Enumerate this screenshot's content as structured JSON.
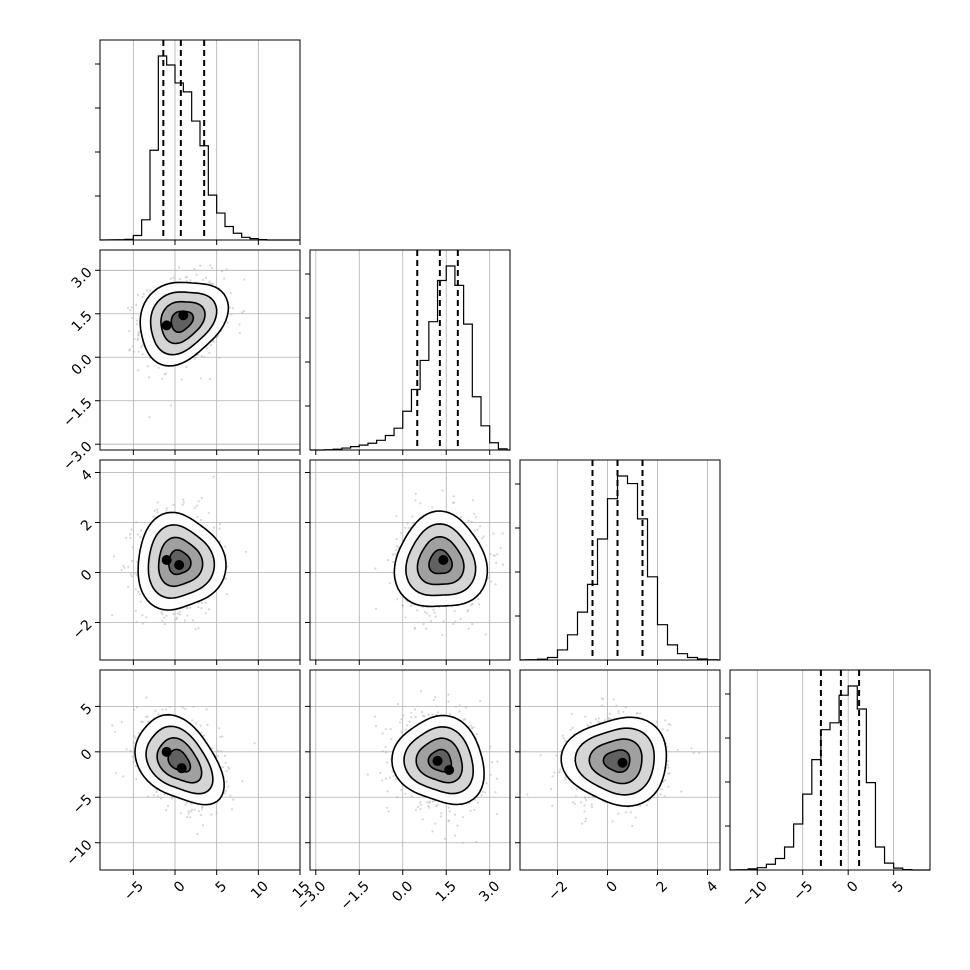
{
  "chart_data": {
    "type": "corner",
    "n_params": 4,
    "colors": {
      "line": "#000000",
      "grid": "#b0b0b0",
      "scatter": "#b4b4b4"
    },
    "grid": true,
    "params": [
      {
        "range": [
          -9,
          15
        ],
        "ticks": [
          -5,
          0,
          5,
          10,
          15
        ],
        "tick_labels": [
          "−5",
          "0",
          "5",
          "10",
          "15"
        ]
      },
      {
        "range": [
          -3.2,
          3.7
        ],
        "ticks": [
          -3.0,
          -1.5,
          0.0,
          1.5,
          3.0
        ],
        "tick_labels": [
          "−3.0",
          "−1.5",
          "0.0",
          "1.5",
          "3.0"
        ]
      },
      {
        "range": [
          -3.5,
          4.5
        ],
        "ticks": [
          -2,
          0,
          2,
          4
        ],
        "tick_labels": [
          "−2",
          "0",
          "2",
          "4"
        ]
      },
      {
        "range": [
          -13,
          9
        ],
        "ticks": [
          -10,
          -5,
          0,
          5
        ],
        "tick_labels": [
          "−10",
          "−5",
          "0",
          "5"
        ]
      }
    ],
    "histograms": [
      {
        "param": 0,
        "bin_edges": [
          -7,
          -6,
          -5,
          -4,
          -3,
          -2,
          -1,
          0,
          1,
          2,
          3,
          4,
          5,
          6,
          7,
          8,
          9,
          10,
          11
        ],
        "counts": [
          1,
          3,
          20,
          90,
          400,
          820,
          780,
          700,
          660,
          530,
          420,
          200,
          120,
          60,
          30,
          12,
          6,
          2
        ],
        "quantiles": [
          -1.4,
          0.7,
          3.5
        ]
      },
      {
        "param": 1,
        "bin_edges": [
          -3.0,
          -2.7,
          -2.4,
          -2.1,
          -1.8,
          -1.5,
          -1.2,
          -0.9,
          -0.6,
          -0.3,
          0.0,
          0.3,
          0.6,
          0.9,
          1.2,
          1.5,
          1.8,
          2.1,
          2.4,
          2.7,
          3.0,
          3.3,
          3.6
        ],
        "counts": [
          0,
          1,
          3,
          8,
          14,
          20,
          28,
          40,
          60,
          90,
          160,
          250,
          370,
          530,
          700,
          760,
          680,
          520,
          220,
          100,
          30,
          5
        ],
        "quantiles": [
          0.5,
          1.28,
          1.9
        ]
      },
      {
        "param": 2,
        "bin_edges": [
          -3.2,
          -2.8,
          -2.4,
          -2.0,
          -1.6,
          -1.2,
          -0.8,
          -0.4,
          0.0,
          0.4,
          0.8,
          1.2,
          1.6,
          2.0,
          2.4,
          2.8,
          3.2,
          3.6,
          4.0,
          4.4
        ],
        "counts": [
          1,
          3,
          10,
          40,
          100,
          190,
          300,
          480,
          640,
          730,
          700,
          560,
          330,
          140,
          60,
          25,
          10,
          4,
          1
        ],
        "quantiles": [
          -0.6,
          0.4,
          1.4
        ]
      },
      {
        "param": 3,
        "bin_edges": [
          -12,
          -11,
          -10,
          -9,
          -8,
          -7,
          -6,
          -5,
          -4,
          -3,
          -2,
          -1,
          0,
          1,
          2,
          3,
          4,
          5,
          6,
          7
        ],
        "counts": [
          1,
          5,
          10,
          25,
          50,
          100,
          200,
          330,
          480,
          610,
          640,
          760,
          800,
          700,
          380,
          100,
          30,
          8,
          2
        ],
        "quantiles": [
          -3.0,
          -0.8,
          1.2
        ]
      }
    ],
    "joint_panels": [
      {
        "x_param": 0,
        "y_param": 1,
        "center": [
          0.8,
          1.25
        ],
        "sigma": [
          2.5,
          0.75
        ],
        "rho": 0.2,
        "density_peaks": [
          [
            -1.0,
            1.1
          ],
          [
            1.0,
            1.45
          ]
        ]
      },
      {
        "x_param": 0,
        "y_param": 2,
        "center": [
          0.5,
          0.4
        ],
        "sigma": [
          2.5,
          1.0
        ],
        "rho": 0.0,
        "density_peaks": [
          [
            -1.0,
            0.5
          ],
          [
            0.5,
            0.3
          ]
        ]
      },
      {
        "x_param": 1,
        "y_param": 2,
        "center": [
          1.3,
          0.4
        ],
        "sigma": [
          0.75,
          1.0
        ],
        "rho": 0.0,
        "density_peaks": [
          [
            1.4,
            0.5
          ]
        ]
      },
      {
        "x_param": 0,
        "y_param": 3,
        "center": [
          0.5,
          -1.0
        ],
        "sigma": [
          2.5,
          2.5
        ],
        "rho": -0.35,
        "density_peaks": [
          [
            -1.0,
            0.0
          ],
          [
            0.8,
            -1.8
          ]
        ]
      },
      {
        "x_param": 1,
        "y_param": 3,
        "center": [
          1.3,
          -1.0
        ],
        "sigma": [
          0.75,
          2.5
        ],
        "rho": -0.1,
        "density_peaks": [
          [
            1.2,
            -1.0
          ],
          [
            1.6,
            -2.0
          ]
        ]
      },
      {
        "x_param": 2,
        "y_param": 3,
        "center": [
          0.4,
          -1.0
        ],
        "sigma": [
          1.0,
          2.5
        ],
        "rho": 0.0,
        "density_peaks": [
          [
            0.6,
            -1.2
          ]
        ]
      }
    ],
    "contour_levels_sigma": [
      0.5,
      1.0,
      1.5,
      2.0
    ]
  }
}
